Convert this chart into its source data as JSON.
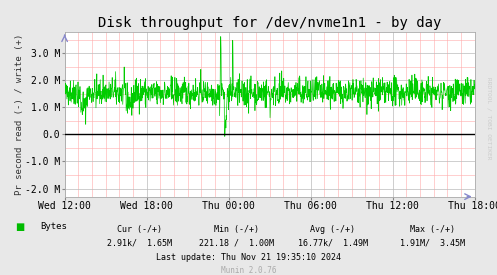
{
  "title": "Disk throughput for /dev/nvme1n1 - by day",
  "ylabel": "Pr second read (-) / write (+)",
  "xlabel_ticks": [
    "Wed 12:00",
    "Wed 18:00",
    "Thu 00:00",
    "Thu 06:00",
    "Thu 12:00",
    "Thu 18:00"
  ],
  "ylim": [
    -2300000,
    3800000
  ],
  "ytick_vals": [
    -2000000,
    -1000000,
    0,
    1000000,
    2000000,
    3000000
  ],
  "ytick_labels": [
    "-2.0 M",
    "-1.0 M",
    "0.0",
    "1.0 M",
    "2.0 M",
    "3.0 M"
  ],
  "line_color": "#00CC00",
  "plot_bg_color": "#FFFFFF",
  "grid_color_major": "#BBBBBB",
  "grid_color_minor": "#FFAAAA",
  "title_fontsize": 10,
  "tick_fontsize": 7,
  "legend_label": "Bytes",
  "legend_color": "#00BB00",
  "cur_neg": "2.91k/",
  "cur_pos": "1.65M",
  "min_neg": "221.18 /",
  "min_pos": "1.00M",
  "avg_neg": "16.77k/",
  "avg_pos": "1.49M",
  "max_neg": "1.91M/",
  "max_pos": "3.45M",
  "footer": "Last update: Thu Nov 21 19:35:10 2024",
  "munin_version": "Munin 2.0.76",
  "rrdtool_text": "RRDTOOL / TOBI OETIKER",
  "outer_bg": "#E8E8E8",
  "arrow_color": "#8888CC"
}
